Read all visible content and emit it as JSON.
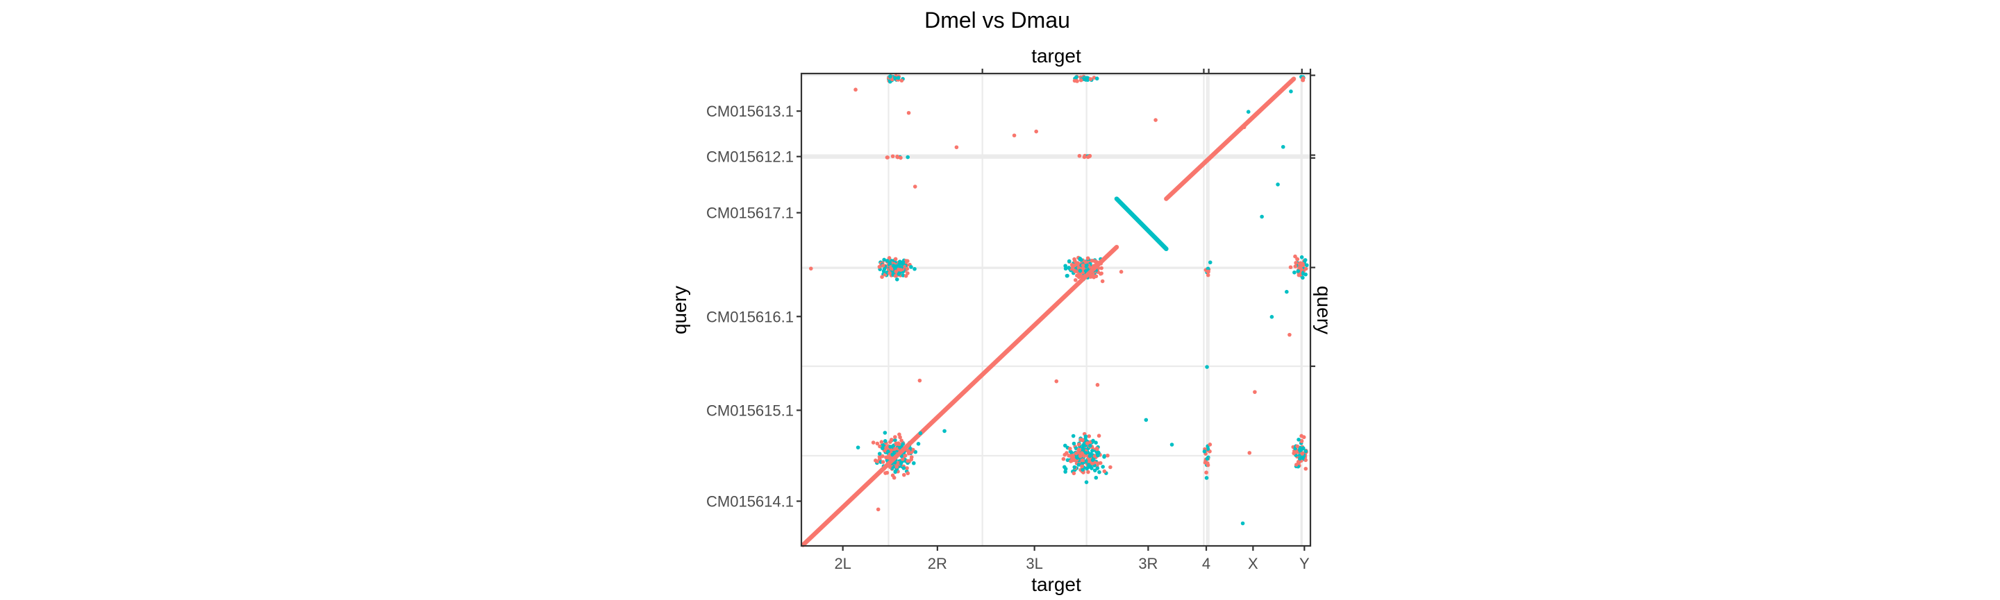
{
  "chart_data": {
    "type": "scatter",
    "title": "Dmel vs Dmau",
    "xlabel": "target",
    "xlabel_top": "target",
    "ylabel": "query",
    "ylabel_right": "query",
    "xlim": [
      0,
      143.7
    ],
    "ylim": [
      0,
      132
    ],
    "grid": true,
    "legend": "none",
    "x_tick_labels": [
      {
        "label": "2L",
        "value": 11.7
      },
      {
        "label": "2R",
        "value": 38.4
      },
      {
        "label": "3L",
        "value": 65.8
      },
      {
        "label": "3R",
        "value": 97.9
      },
      {
        "label": "4",
        "value": 114.3
      },
      {
        "label": "X",
        "value": 127.5
      },
      {
        "label": "Y",
        "value": 142.0
      }
    ],
    "x_boundaries": [
      51.1,
      113.6,
      115.0,
      141.3,
      143.7
    ],
    "x_gridlines": [
      24.6,
      80.5,
      114.5,
      141.1
    ],
    "y_tick_labels": [
      {
        "label": "CM015614.1",
        "value": 12.5
      },
      {
        "label": "CM015615.1",
        "value": 37.9
      },
      {
        "label": "CM015616.1",
        "value": 64.1
      },
      {
        "label": "CM015617.1",
        "value": 93.1
      },
      {
        "label": "CM015612.1",
        "value": 108.8
      },
      {
        "label": "CM015613.1",
        "value": 121.5
      }
    ],
    "y_boundaries": [
      50.2,
      77.8,
      108.4,
      109.2,
      131.5
    ],
    "y_gridlines": [
      25.2,
      77.6,
      108.8
    ],
    "series": [
      {
        "color": "#F8766D",
        "segments": [
          [
            0.5,
            0.3,
            89.0,
            83.5
          ],
          [
            103.0,
            97.0,
            139.0,
            130.5
          ]
        ],
        "points": [
          [
            2.7,
            77.5
          ],
          [
            15.3,
            127.5
          ],
          [
            43.8,
            111.4
          ],
          [
            60.1,
            114.7
          ],
          [
            66.3,
            115.8
          ],
          [
            72.0,
            46.0
          ],
          [
            100.0,
            119.0
          ],
          [
            83.6,
            45.0
          ],
          [
            125.0,
            117.0
          ],
          [
            128.0,
            43.0
          ],
          [
            137.8,
            59.0
          ],
          [
            33.4,
            46.2
          ],
          [
            21.7,
            10.2
          ],
          [
            32.1,
            100.4
          ],
          [
            30.3,
            121.0
          ],
          [
            126.5,
            26.0
          ],
          [
            90.3,
            76.6
          ]
        ]
      },
      {
        "color": "#00BFC4",
        "segments": [
          [
            89.0,
            97.0,
            103.0,
            83.0
          ]
        ],
        "points": [
          [
            16.0,
            27.5
          ],
          [
            33.6,
            31.5
          ],
          [
            40.4,
            32.1
          ],
          [
            83.7,
            25.3
          ],
          [
            97.3,
            35.2
          ],
          [
            124.6,
            6.3
          ],
          [
            130.0,
            92.0
          ],
          [
            132.8,
            64.0
          ],
          [
            134.5,
            101.0
          ],
          [
            136.0,
            111.5
          ],
          [
            138.2,
            127.0
          ],
          [
            104.6,
            28.3
          ],
          [
            114.5,
            50.0
          ],
          [
            114.4,
            19.0
          ],
          [
            113.8,
            26.4
          ],
          [
            126.2,
            121.3
          ],
          [
            137.0,
            71.0
          ]
        ]
      }
    ],
    "clusters": [
      {
        "x": 26.5,
        "y": 25.2,
        "spread": [
          6.5,
          7.0
        ],
        "count": 220
      },
      {
        "x": 80.0,
        "y": 25.2,
        "spread": [
          7.0,
          7.0
        ],
        "count": 220
      },
      {
        "x": 26.5,
        "y": 77.6,
        "spread": [
          6.0,
          3.5
        ],
        "count": 150
      },
      {
        "x": 80.0,
        "y": 77.6,
        "spread": [
          6.5,
          4.0
        ],
        "count": 170
      },
      {
        "x": 141.0,
        "y": 25.2,
        "spread": [
          2.6,
          6.0
        ],
        "count": 60
      },
      {
        "x": 141.0,
        "y": 77.6,
        "spread": [
          2.6,
          4.0
        ],
        "count": 50
      },
      {
        "x": 114.6,
        "y": 25.2,
        "spread": [
          1.0,
          6.0
        ],
        "count": 18
      },
      {
        "x": 114.6,
        "y": 77.6,
        "spread": [
          1.0,
          3.0
        ],
        "count": 8
      },
      {
        "x": 26.5,
        "y": 130.5,
        "spread": [
          4.5,
          1.2
        ],
        "count": 28
      },
      {
        "x": 80.0,
        "y": 130.5,
        "spread": [
          5.0,
          1.0
        ],
        "count": 28
      },
      {
        "x": 26.5,
        "y": 108.8,
        "spread": [
          4.5,
          0.4
        ],
        "count": 8
      },
      {
        "x": 80.0,
        "y": 108.8,
        "spread": [
          4.5,
          0.4
        ],
        "count": 10
      },
      {
        "x": 141.5,
        "y": 130.5,
        "spread": [
          1.5,
          1.0
        ],
        "count": 6
      }
    ]
  }
}
